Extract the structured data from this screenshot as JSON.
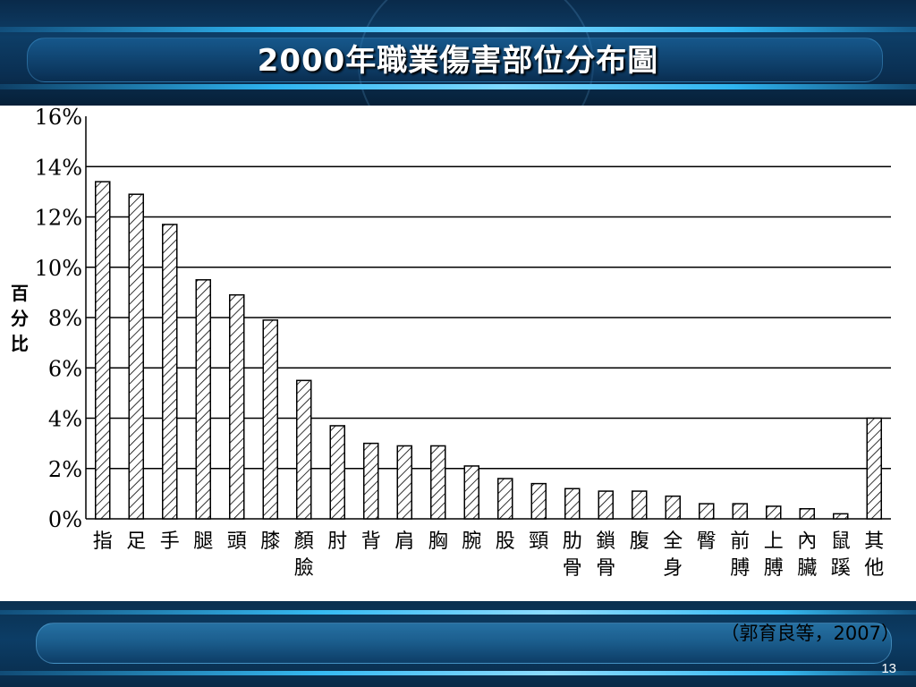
{
  "slide": {
    "title": "2000年職業傷害部位分布圖",
    "citation": "（郭育良等，2007）",
    "page_number": "13"
  },
  "colors": {
    "header_bg": "#0d3d66",
    "accent_glow": "#2fb4f0",
    "bar_fill_hatch": "#000000",
    "title_text": "#ffffff"
  },
  "chart_data": {
    "type": "bar",
    "title": "2000年職業傷害部位分布圖",
    "xlabel": "",
    "ylabel": "百分比",
    "ylabel_chars": [
      "百",
      "分",
      "比"
    ],
    "ylim": [
      0,
      16
    ],
    "yticks": [
      0,
      2,
      4,
      6,
      8,
      10,
      12,
      14,
      16
    ],
    "ytick_labels": [
      "0%",
      "2%",
      "4%",
      "6%",
      "8%",
      "10%",
      "12%",
      "14%",
      "16%"
    ],
    "grid": true,
    "bar_style": "hatched",
    "categories": [
      "指",
      "足",
      "手",
      "腿",
      "頭",
      "膝",
      "顏臉",
      "肘",
      "背",
      "肩",
      "胸",
      "腕",
      "股",
      "頸",
      "肋骨",
      "鎖骨",
      "腹",
      "全身",
      "臀",
      "前膊",
      "上膊",
      "內臟",
      "鼠蹊",
      "其他"
    ],
    "category_lines": [
      [
        "指"
      ],
      [
        "足"
      ],
      [
        "手"
      ],
      [
        "腿"
      ],
      [
        "頭"
      ],
      [
        "膝"
      ],
      [
        "顏",
        "臉"
      ],
      [
        "肘"
      ],
      [
        "背"
      ],
      [
        "肩"
      ],
      [
        "胸"
      ],
      [
        "腕"
      ],
      [
        "股"
      ],
      [
        "頸"
      ],
      [
        "肋",
        "骨"
      ],
      [
        "鎖",
        "骨"
      ],
      [
        "腹"
      ],
      [
        "全",
        "身"
      ],
      [
        "臀"
      ],
      [
        "前",
        "膊"
      ],
      [
        "上",
        "膊"
      ],
      [
        "內",
        "臟"
      ],
      [
        "鼠",
        "蹊"
      ],
      [
        "其",
        "他"
      ]
    ],
    "values": [
      13.4,
      12.9,
      11.7,
      9.5,
      8.9,
      7.9,
      5.5,
      3.7,
      3.0,
      2.9,
      2.9,
      2.1,
      1.6,
      1.4,
      1.2,
      1.1,
      1.1,
      0.9,
      0.6,
      0.6,
      0.5,
      0.4,
      0.2,
      4.0
    ]
  }
}
